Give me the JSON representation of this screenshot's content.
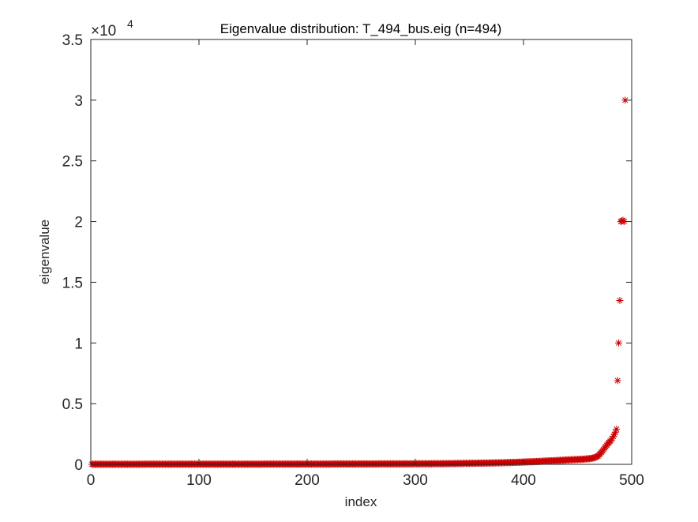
{
  "chart_data": {
    "type": "scatter",
    "title": "Eigenvalue distribution: T_494_bus.eig (n=494)",
    "xlabel": "index",
    "ylabel": "eigenvalue",
    "xlim": [
      0,
      500
    ],
    "ylim": [
      0,
      35000
    ],
    "xticks": [
      0,
      100,
      200,
      300,
      400,
      500
    ],
    "xtick_labels": [
      "0",
      "100",
      "200",
      "300",
      "400",
      "500"
    ],
    "yticks": [
      0,
      5000,
      10000,
      15000,
      20000,
      25000,
      30000,
      35000
    ],
    "ytick_labels": [
      "0",
      "0.5",
      "1",
      "1.5",
      "2",
      "2.5",
      "3",
      "3.5"
    ],
    "y_exponent": {
      "base": "×10",
      "power": "4"
    },
    "grid": false,
    "legend": "none",
    "marker": "asterisk",
    "marker_color": "#cc0000",
    "n": 494,
    "profile": [
      [
        1,
        10
      ],
      [
        100,
        15
      ],
      [
        200,
        25
      ],
      [
        300,
        45
      ],
      [
        330,
        60
      ],
      [
        350,
        85
      ],
      [
        380,
        130
      ],
      [
        400,
        190
      ],
      [
        420,
        270
      ],
      [
        440,
        360
      ],
      [
        455,
        420
      ],
      [
        462,
        480
      ],
      [
        466,
        560
      ],
      [
        469,
        700
      ],
      [
        472,
        1000
      ],
      [
        475,
        1350
      ],
      [
        478,
        1700
      ],
      [
        481,
        2000
      ],
      [
        483,
        2300
      ],
      [
        485,
        2650
      ]
    ],
    "outliers": [
      [
        486,
        2900
      ],
      [
        487,
        6900
      ],
      [
        488,
        10000
      ],
      [
        489,
        13500
      ],
      [
        490,
        20000
      ],
      [
        491,
        20050
      ],
      [
        492,
        20100
      ],
      [
        493,
        20000
      ],
      [
        494,
        30000
      ]
    ]
  }
}
